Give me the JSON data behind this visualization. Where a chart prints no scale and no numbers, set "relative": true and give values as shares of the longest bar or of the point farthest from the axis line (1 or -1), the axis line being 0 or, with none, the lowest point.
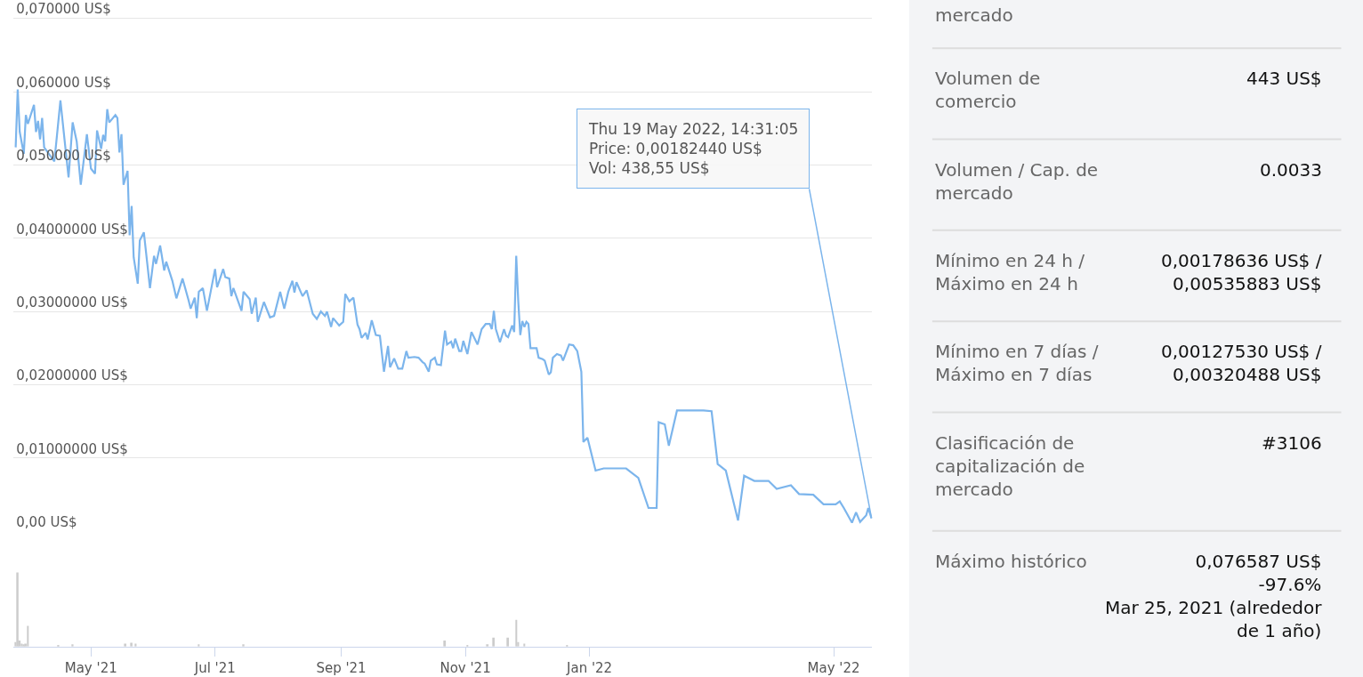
{
  "chart_data": [
    {
      "type": "line",
      "grid": "y",
      "marker": "none",
      "line_style": "solid",
      "tick_labels": "y",
      "xlim": [
        "2021-03-24",
        "2022-05-20"
      ],
      "ylim": [
        0,
        0.0725
      ],
      "yticks": [
        {
          "value": 0,
          "label": "0,00 US$"
        },
        {
          "value": 0.01,
          "label": "0,01000000 US$"
        },
        {
          "value": 0.02,
          "label": "0,02000000 US$"
        },
        {
          "value": 0.03,
          "label": "0,03000000 US$"
        },
        {
          "value": 0.04,
          "label": "0,04000000 US$"
        },
        {
          "value": 0.05,
          "label": "0,050000 US$"
        },
        {
          "value": 0.06,
          "label": "0,060000 US$"
        },
        {
          "value": 0.07,
          "label": "0,070000 US$"
        }
      ],
      "x": [
        "2021-03-25",
        "2021-03-26",
        "2021-03-27",
        "2021-03-29",
        "2021-03-30",
        "2021-03-31",
        "2021-04-03",
        "2021-04-04",
        "2021-04-05",
        "2021-04-06",
        "2021-04-07",
        "2021-04-08",
        "2021-04-13",
        "2021-04-14",
        "2021-04-16",
        "2021-04-18",
        "2021-04-20",
        "2021-04-22",
        "2021-04-24",
        "2021-04-26",
        "2021-04-29",
        "2021-05-01",
        "2021-05-03",
        "2021-05-04",
        "2021-05-06",
        "2021-05-07",
        "2021-05-08",
        "2021-05-09",
        "2021-05-10",
        "2021-05-13",
        "2021-05-14",
        "2021-05-15",
        "2021-05-16",
        "2021-05-17",
        "2021-05-19",
        "2021-05-20",
        "2021-05-21",
        "2021-05-22",
        "2021-05-24",
        "2021-05-25",
        "2021-05-27",
        "2021-05-30",
        "2021-06-01",
        "2021-06-02",
        "2021-06-04",
        "2021-06-06",
        "2021-06-07",
        "2021-06-10",
        "2021-06-12",
        "2021-06-15",
        "2021-06-18",
        "2021-06-19",
        "2021-06-21",
        "2021-06-22",
        "2021-06-23",
        "2021-06-25",
        "2021-06-27",
        "2021-07-01",
        "2021-07-02",
        "2021-07-05",
        "2021-07-06",
        "2021-07-08",
        "2021-07-09",
        "2021-07-10",
        "2021-07-14",
        "2021-07-15",
        "2021-07-18",
        "2021-07-19",
        "2021-07-21",
        "2021-07-22",
        "2021-07-25",
        "2021-07-28",
        "2021-07-30",
        "2021-08-02",
        "2021-08-04",
        "2021-08-06",
        "2021-08-08",
        "2021-08-09",
        "2021-08-10",
        "2021-08-13",
        "2021-08-15",
        "2021-08-18",
        "2021-08-20",
        "2021-08-22",
        "2021-08-24",
        "2021-08-25",
        "2021-08-27",
        "2021-08-28",
        "2021-08-31",
        "2021-09-02",
        "2021-09-03",
        "2021-09-05",
        "2021-09-07",
        "2021-09-09",
        "2021-09-10",
        "2021-09-11",
        "2021-09-13",
        "2021-09-14",
        "2021-09-16",
        "2021-09-18",
        "2021-09-20",
        "2021-09-22",
        "2021-09-24",
        "2021-09-25",
        "2021-09-27",
        "2021-09-29",
        "2021-10-01",
        "2021-10-03",
        "2021-10-04",
        "2021-10-07",
        "2021-10-09",
        "2021-10-11",
        "2021-10-12",
        "2021-10-14",
        "2021-10-15",
        "2021-10-17",
        "2021-10-18",
        "2021-10-20",
        "2021-10-22",
        "2021-10-23",
        "2021-10-25",
        "2021-10-26",
        "2021-10-27",
        "2021-10-29",
        "2021-10-30",
        "2021-10-31",
        "2021-11-02",
        "2021-11-04",
        "2021-11-07",
        "2021-11-09",
        "2021-11-11",
        "2021-11-13",
        "2021-11-14",
        "2021-11-15",
        "2021-11-16",
        "2021-11-18",
        "2021-11-20",
        "2021-11-21",
        "2021-11-22",
        "2021-11-24",
        "2021-11-25",
        "2021-11-26",
        "2021-11-27",
        "2021-11-28",
        "2021-11-29",
        "2021-11-30",
        "2021-12-01",
        "2021-12-02",
        "2021-12-03",
        "2021-12-06",
        "2021-12-07",
        "2021-12-09",
        "2021-12-10",
        "2021-12-12",
        "2021-12-13",
        "2021-12-14",
        "2021-12-16",
        "2021-12-18",
        "2021-12-19",
        "2021-12-22",
        "2021-12-24",
        "2021-12-26",
        "2021-12-28",
        "2021-12-29",
        "2021-12-31",
        "2022-01-04",
        "2022-01-08",
        "2022-01-19",
        "2022-01-25",
        "2022-01-30",
        "2022-02-03",
        "2022-02-04",
        "2022-02-07",
        "2022-02-09",
        "2022-02-13",
        "2022-02-26",
        "2022-03-02",
        "2022-03-05",
        "2022-03-09",
        "2022-03-15",
        "2022-03-18",
        "2022-03-23",
        "2022-03-30",
        "2022-04-03",
        "2022-04-10",
        "2022-04-14",
        "2022-04-21",
        "2022-04-26",
        "2022-05-02",
        "2022-05-04",
        "2022-05-06",
        "2022-05-10",
        "2022-05-12",
        "2022-05-14",
        "2022-05-17",
        "2022-05-18",
        "2022-05-19T14:31"
      ],
      "series": [
        {
          "color": "#7cb5ec",
          "values": [
            0.0524,
            0.0603,
            0.0545,
            0.0515,
            0.0568,
            0.0556,
            0.0582,
            0.0545,
            0.056,
            0.0535,
            0.0564,
            0.0524,
            0.0505,
            0.0532,
            0.0588,
            0.0535,
            0.0483,
            0.0558,
            0.0532,
            0.0473,
            0.0542,
            0.0495,
            0.0488,
            0.0547,
            0.0522,
            0.0541,
            0.0532,
            0.0576,
            0.0558,
            0.0568,
            0.0564,
            0.0517,
            0.0542,
            0.0473,
            0.0492,
            0.0404,
            0.0444,
            0.0374,
            0.0338,
            0.0397,
            0.0408,
            0.0332,
            0.0376,
            0.0365,
            0.039,
            0.0356,
            0.0368,
            0.0342,
            0.0318,
            0.0345,
            0.0315,
            0.0304,
            0.0319,
            0.0291,
            0.0327,
            0.0332,
            0.0301,
            0.0358,
            0.0333,
            0.0358,
            0.0347,
            0.0345,
            0.0321,
            0.0332,
            0.0301,
            0.0327,
            0.0317,
            0.0297,
            0.0319,
            0.0286,
            0.0313,
            0.0292,
            0.0294,
            0.0327,
            0.0304,
            0.0327,
            0.0342,
            0.0326,
            0.034,
            0.0321,
            0.0329,
            0.0297,
            0.029,
            0.03,
            0.0294,
            0.03,
            0.0279,
            0.0291,
            0.0281,
            0.0286,
            0.0324,
            0.0314,
            0.0319,
            0.0282,
            0.0276,
            0.0264,
            0.0271,
            0.0262,
            0.0288,
            0.0268,
            0.0267,
            0.0218,
            0.0253,
            0.0224,
            0.0236,
            0.0222,
            0.0222,
            0.0246,
            0.0237,
            0.0238,
            0.0237,
            0.0231,
            0.0229,
            0.0218,
            0.0233,
            0.0237,
            0.0228,
            0.0227,
            0.0274,
            0.0255,
            0.0259,
            0.025,
            0.0263,
            0.0246,
            0.0246,
            0.026,
            0.0242,
            0.0272,
            0.0255,
            0.0276,
            0.0283,
            0.0283,
            0.0276,
            0.0301,
            0.0276,
            0.0258,
            0.0276,
            0.0267,
            0.0265,
            0.0281,
            0.0272,
            0.0376,
            0.0314,
            0.0268,
            0.0287,
            0.0279,
            0.0286,
            0.0283,
            0.025,
            0.025,
            0.0237,
            0.0235,
            0.0233,
            0.0214,
            0.0217,
            0.0237,
            0.0242,
            0.024,
            0.0233,
            0.0255,
            0.0254,
            0.0246,
            0.0218,
            0.0122,
            0.0128,
            0.0083,
            0.0086,
            0.0086,
            0.0073,
            0.0032,
            0.0032,
            0.0149,
            0.0146,
            0.0117,
            0.0165,
            0.0165,
            0.0164,
            0.0092,
            0.0083,
            0.0015,
            0.0076,
            0.0069,
            0.0069,
            0.0058,
            0.0063,
            0.0051,
            0.005,
            0.0037,
            0.0037,
            0.0041,
            0.0032,
            0.0012,
            0.0026,
            0.0013,
            0.0022,
            0.0032,
            0.0018
          ]
        }
      ],
      "annotations": [
        {
          "text": "Thu 19 May 2022, 14:31:05\nPrice: 0,00182440 US$\nVol: 438,55 US$",
          "x": "2022-05-19T14:31",
          "y": 0.0018244
        }
      ]
    },
    {
      "type": "bar",
      "relative": true,
      "tick_labels": "x",
      "xlim": [
        "2021-03-24",
        "2022-05-20"
      ],
      "xticks": [
        {
          "value": "2021-05-01",
          "label": "May '21"
        },
        {
          "value": "2021-07-01",
          "label": "Jul '21"
        },
        {
          "value": "2021-09-01",
          "label": "Sep '21"
        },
        {
          "value": "2021-11-01",
          "label": "Nov '21"
        },
        {
          "value": "2022-01-01",
          "label": "Jan '22"
        },
        {
          "value": "2022-05-01",
          "label": "May '22"
        }
      ],
      "x": [
        "2021-03-25",
        "2021-03-26",
        "2021-03-27",
        "2021-03-28",
        "2021-03-29",
        "2021-03-30",
        "2021-03-31",
        "2021-04-15",
        "2021-04-22",
        "2021-05-18",
        "2021-05-21",
        "2021-05-23",
        "2021-06-23",
        "2021-07-15",
        "2021-10-22",
        "2021-11-02",
        "2021-11-12",
        "2021-11-15",
        "2021-11-22",
        "2021-11-26",
        "2021-11-27",
        "2021-11-30",
        "2021-12-21"
      ],
      "series": [
        {
          "color": "#cccccc",
          "values": [
            0.06,
            1,
            0.08,
            0.04,
            0.03,
            0.04,
            0.28,
            0.02,
            0.03,
            0.04,
            0.05,
            0.04,
            0.03,
            0.03,
            0.08,
            0.02,
            0.03,
            0.12,
            0.12,
            0.36,
            0.06,
            0.04,
            0.02
          ]
        }
      ]
    },
    {
      "type": "other",
      "categories": [
        "mercado",
        "Volumen de\ncomercio",
        "Volumen / Cap. de\nmercado",
        "Mínimo en 24 h /\nMáximo en 24 h",
        "Mínimo en 7 días /\nMáximo en 7 días",
        "Clasificación de\ncapitalización de\nmercado",
        "Máximo histórico"
      ],
      "value_labels": [
        null,
        "443 US$",
        "0.0033",
        "0,00178636 US$ /\n0,00535883 US$",
        "0,00127530 US$ /\n0,00320488 US$",
        "#3106",
        "0,076587 US$\n-97.6%\nMar 25, 2021 (alrededor\nde 1 año)"
      ]
    }
  ]
}
